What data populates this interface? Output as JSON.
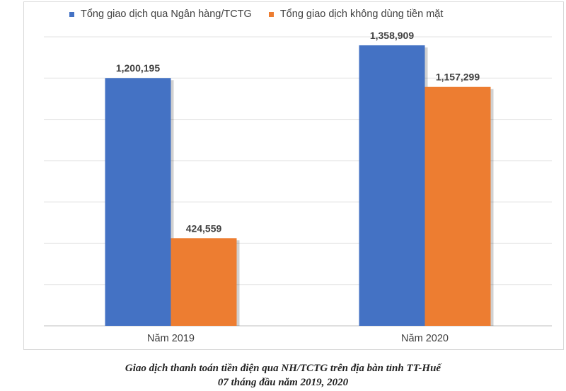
{
  "chart_data": {
    "type": "bar",
    "categories": [
      "Năm 2019",
      "Năm 2020"
    ],
    "series": [
      {
        "name": "Tổng giao dịch qua Ngân hàng/TCTG",
        "values": [
          1200195,
          1358909
        ],
        "color": "#4472C4"
      },
      {
        "name": "Tổng giao dịch không dùng tiền mặt",
        "values": [
          424559,
          1157299
        ],
        "color": "#ED7D31"
      }
    ],
    "value_labels": [
      [
        "1,200,195",
        "1,358,909"
      ],
      [
        "424,559",
        "1,157,299"
      ]
    ],
    "ylim": [
      0,
      1400000
    ],
    "grid": true,
    "legend_position": "top"
  },
  "caption": {
    "line1": "Giao dịch thanh toán tiền điện qua NH/TCTG trên địa bàn tỉnh TT-Huế",
    "line2": "07 tháng đầu năm 2019, 2020"
  }
}
